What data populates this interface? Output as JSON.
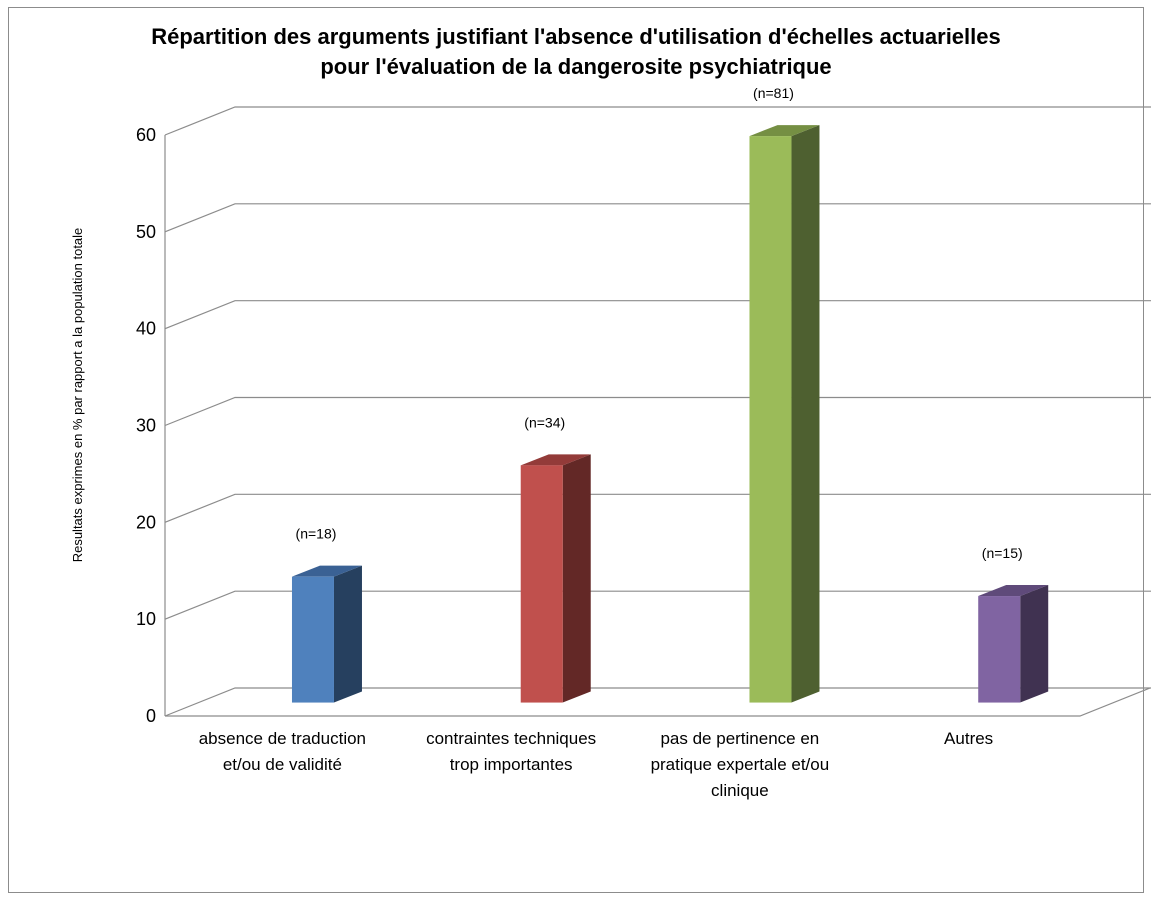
{
  "chart_data": {
    "type": "bar",
    "title_lines": [
      "Répartition des arguments justifiant l'absence d'utilisation d'échelles actuarielles",
      "pour l'évaluation de la dangerosite psychiatrique"
    ],
    "ylabel": "Resultats exprimes en % par rapport a la population totale",
    "xlabel": "",
    "ylim": [
      0,
      60
    ],
    "yticks": [
      0,
      10,
      20,
      30,
      40,
      50,
      60
    ],
    "grid": true,
    "categories": [
      [
        "absence de traduction",
        "et/ou de validité"
      ],
      [
        "contraintes techniques",
        "trop importantes"
      ],
      [
        "pas de pertinence en",
        "pratique expertale et/ou",
        "clinique"
      ],
      [
        "Autres"
      ]
    ],
    "values": [
      13,
      24.5,
      58.5,
      11
    ],
    "annotations": [
      "(n=18)",
      "(n=34)",
      "(n=81)",
      "(n=15)"
    ],
    "colors": {
      "front": [
        "#4f81bd",
        "#c0504d",
        "#9bbb59",
        "#8064a2"
      ],
      "side": [
        "#26405f",
        "#632826",
        "#4e6030",
        "#403251"
      ],
      "top": [
        "#3a6194",
        "#933b39",
        "#758f43",
        "#5f4a7a"
      ]
    }
  }
}
